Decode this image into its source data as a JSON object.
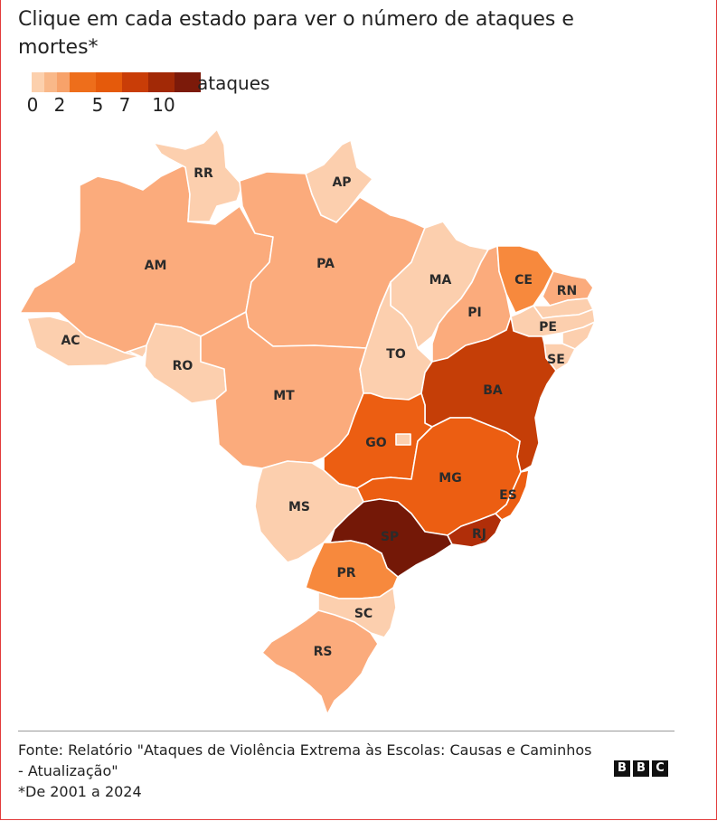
{
  "title": "Clique em cada estado para ver o número de ataques e mortes*",
  "legend": {
    "label": "ataques",
    "colors": [
      "#fcd0ad",
      "#f9b889",
      "#f7a26a",
      "#ee6e1b",
      "#e55a0b",
      "#c93d07",
      "#a22906",
      "#7c1a0a"
    ],
    "ticks": [
      "0",
      "2",
      "5",
      "7",
      "10"
    ]
  },
  "map_colors": {
    "lightest": "#fccfae",
    "light": "#fbab7c",
    "medium": "#f7893d",
    "orange": "#ec5e12",
    "dark": "#c53e07",
    "darker": "#b02e09",
    "darkest": "#741807"
  },
  "states": [
    {
      "code": "RR",
      "shade": "lightest"
    },
    {
      "code": "AP",
      "shade": "lightest"
    },
    {
      "code": "AM",
      "shade": "light"
    },
    {
      "code": "PA",
      "shade": "light"
    },
    {
      "code": "MA",
      "shade": "lightest"
    },
    {
      "code": "CE",
      "shade": "medium"
    },
    {
      "code": "RN",
      "shade": "light"
    },
    {
      "code": "PI",
      "shade": "light"
    },
    {
      "code": "PE",
      "shade": "lightest"
    },
    {
      "code": "AC",
      "shade": "lightest"
    },
    {
      "code": "RO",
      "shade": "lightest"
    },
    {
      "code": "TO",
      "shade": "lightest"
    },
    {
      "code": "SE",
      "shade": "lightest"
    },
    {
      "code": "BA",
      "shade": "dark"
    },
    {
      "code": "MT",
      "shade": "light"
    },
    {
      "code": "GO",
      "shade": "orange"
    },
    {
      "code": "MG",
      "shade": "orange"
    },
    {
      "code": "ES",
      "shade": "orange"
    },
    {
      "code": "MS",
      "shade": "lightest"
    },
    {
      "code": "SP",
      "shade": "darkest"
    },
    {
      "code": "RJ",
      "shade": "darker"
    },
    {
      "code": "PR",
      "shade": "medium"
    },
    {
      "code": "SC",
      "shade": "lightest"
    },
    {
      "code": "RS",
      "shade": "light"
    }
  ],
  "footer": {
    "source": "Fonte: Relatório \"Ataques de Violência Extrema às Escolas: Causas e Caminhos - Atualização\"",
    "note": "*De 2001 a 2024"
  },
  "logo": [
    "B",
    "B",
    "C"
  ]
}
